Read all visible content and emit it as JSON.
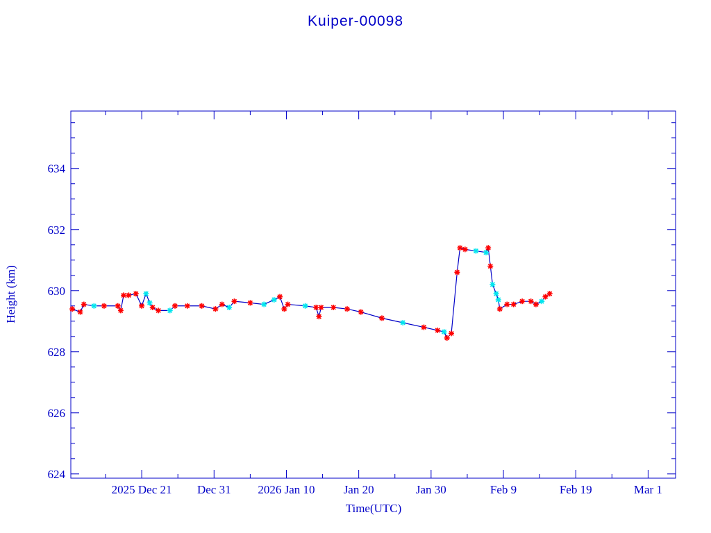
{
  "chart_data": {
    "type": "line",
    "title": "Kuiper-00098",
    "xlabel": "Time(UTC)",
    "ylabel": "Height (km)",
    "x_units": "days since 2025 Dec 21",
    "xlim": [
      -9.8,
      73.8
    ],
    "ylim": [
      623.86,
      635.88
    ],
    "x_ticks": [
      {
        "value": 0,
        "label": "2025 Dec 21"
      },
      {
        "value": 10,
        "label": "Dec 31"
      },
      {
        "value": 20,
        "label": "2026 Jan 10"
      },
      {
        "value": 30,
        "label": "Jan 20"
      },
      {
        "value": 40,
        "label": "Jan 30"
      },
      {
        "value": 50,
        "label": "Feb  9"
      },
      {
        "value": 60,
        "label": "Feb 19"
      },
      {
        "value": 70,
        "label": "Mar  1"
      }
    ],
    "y_ticks": [
      624,
      626,
      628,
      630,
      632,
      634
    ],
    "y_tick_labels": [
      "624",
      "626",
      "628",
      "630",
      "632",
      "634"
    ],
    "colors": {
      "axis": "#0000c8",
      "line": "#0000c8",
      "marker_red": "#ff0000",
      "marker_cyan": "#00e5ee"
    },
    "points": [
      [
        -9.6,
        629.4,
        "r"
      ],
      [
        -8.5,
        629.3,
        "r"
      ],
      [
        -8.0,
        629.55,
        "r"
      ],
      [
        -6.6,
        629.5,
        "c"
      ],
      [
        -5.2,
        629.5,
        "r"
      ],
      [
        -3.3,
        629.5,
        "r"
      ],
      [
        -2.9,
        629.35,
        "r"
      ],
      [
        -2.5,
        629.85,
        "r"
      ],
      [
        -1.8,
        629.85,
        "r"
      ],
      [
        -0.8,
        629.9,
        "r"
      ],
      [
        0.0,
        629.5,
        "r"
      ],
      [
        0.6,
        629.9,
        "c"
      ],
      [
        1.1,
        629.6,
        "c"
      ],
      [
        1.5,
        629.45,
        "r"
      ],
      [
        2.3,
        629.35,
        "r"
      ],
      [
        3.9,
        629.35,
        "c"
      ],
      [
        4.6,
        629.5,
        "r"
      ],
      [
        6.3,
        629.5,
        "r"
      ],
      [
        8.3,
        629.5,
        "r"
      ],
      [
        10.2,
        629.4,
        "r"
      ],
      [
        11.1,
        629.55,
        "r"
      ],
      [
        12.1,
        629.45,
        "c"
      ],
      [
        12.8,
        629.65,
        "r"
      ],
      [
        15.0,
        629.6,
        "r"
      ],
      [
        16.9,
        629.55,
        "c"
      ],
      [
        18.3,
        629.7,
        "c"
      ],
      [
        19.1,
        629.8,
        "r"
      ],
      [
        19.7,
        629.4,
        "r"
      ],
      [
        20.2,
        629.55,
        "r"
      ],
      [
        22.6,
        629.5,
        "c"
      ],
      [
        24.1,
        629.45,
        "r"
      ],
      [
        24.5,
        629.15,
        "r"
      ],
      [
        24.8,
        629.45,
        "r"
      ],
      [
        26.5,
        629.45,
        "r"
      ],
      [
        28.4,
        629.4,
        "r"
      ],
      [
        30.3,
        629.3,
        "r"
      ],
      [
        33.2,
        629.1,
        "r"
      ],
      [
        36.1,
        628.95,
        "c"
      ],
      [
        39.0,
        628.8,
        "r"
      ],
      [
        40.9,
        628.7,
        "r"
      ],
      [
        41.8,
        628.65,
        "c"
      ],
      [
        42.2,
        628.45,
        "r"
      ],
      [
        42.8,
        628.6,
        "r"
      ],
      [
        43.6,
        630.6,
        "r"
      ],
      [
        44.0,
        631.4,
        "r"
      ],
      [
        44.7,
        631.35,
        "r"
      ],
      [
        46.2,
        631.3,
        "c"
      ],
      [
        47.6,
        631.25,
        "c"
      ],
      [
        47.9,
        631.4,
        "r"
      ],
      [
        48.2,
        630.8,
        "r"
      ],
      [
        48.5,
        630.2,
        "c"
      ],
      [
        49.0,
        629.9,
        "c"
      ],
      [
        49.3,
        629.7,
        "c"
      ],
      [
        49.5,
        629.4,
        "r"
      ],
      [
        50.5,
        629.55,
        "r"
      ],
      [
        51.4,
        629.55,
        "r"
      ],
      [
        52.6,
        629.65,
        "r"
      ],
      [
        53.8,
        629.65,
        "r"
      ],
      [
        54.5,
        629.55,
        "r"
      ],
      [
        55.3,
        629.65,
        "c"
      ],
      [
        55.8,
        629.8,
        "r"
      ],
      [
        56.4,
        629.9,
        "r"
      ]
    ]
  }
}
